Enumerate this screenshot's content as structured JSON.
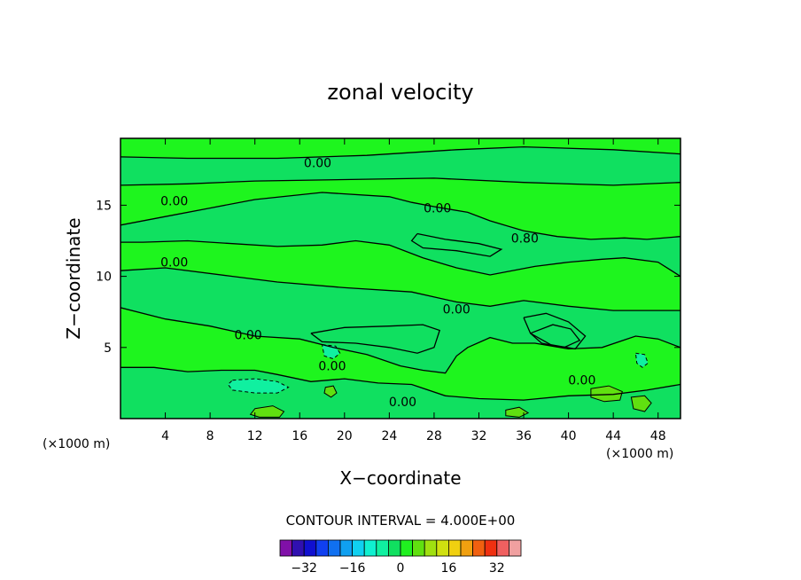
{
  "chart_data": {
    "type": "heatmap",
    "title": "zonal velocity",
    "xlabel": "X−coordinate",
    "ylabel": "Z−coordinate",
    "x_unit_label": "(×1000 m)",
    "y_unit_label": "(×1000 m)",
    "xlim": [
      0,
      50
    ],
    "ylim": [
      0,
      19.7
    ],
    "x_ticks": [
      4,
      8,
      12,
      16,
      20,
      24,
      28,
      32,
      36,
      40,
      44,
      48
    ],
    "y_ticks": [
      5,
      10,
      15
    ],
    "contour_interval_text": "CONTOUR INTERVAL = 4.000E+00",
    "contour_interval": 4,
    "contour_labels": [
      {
        "text": "0.00",
        "x": 17.6,
        "z": 18.0
      },
      {
        "text": "0.00",
        "x": 4.8,
        "z": 15.3
      },
      {
        "text": "0.00",
        "x": 28.3,
        "z": 14.8
      },
      {
        "text": "0.80",
        "x": 36.1,
        "z": 12.7
      },
      {
        "text": "0.00",
        "x": 4.8,
        "z": 11.0
      },
      {
        "text": "0.00",
        "x": 30.0,
        "z": 7.7
      },
      {
        "text": "0.00",
        "x": 11.4,
        "z": 5.9
      },
      {
        "text": "0.00",
        "x": 18.9,
        "z": 3.7
      },
      {
        "text": "0.00",
        "x": 41.2,
        "z": 2.7
      },
      {
        "text": "0.00",
        "x": 25.2,
        "z": 1.2
      }
    ],
    "colorbar": {
      "ticks": [
        -32,
        -16,
        0,
        16,
        32
      ],
      "tick_labels": [
        "−32",
        "−16",
        "0",
        "16",
        "32"
      ],
      "levels": [
        -36,
        -32,
        -28,
        -24,
        -20,
        -16,
        -12,
        -8,
        -4,
        0,
        4,
        8,
        12,
        16,
        20,
        24,
        28,
        32,
        36
      ],
      "colors": [
        "#8010a8",
        "#3010b0",
        "#1010d0",
        "#1040f0",
        "#1070f0",
        "#10a0f0",
        "#10d0f0",
        "#10f0d0",
        "#10f0a0",
        "#10e060",
        "#20f020",
        "#60e010",
        "#a0e010",
        "#d0e010",
        "#f0d010",
        "#f0a010",
        "#f06010",
        "#f03010",
        "#f06060",
        "#f0a0a0"
      ]
    },
    "background_value_color": "#1ef51e",
    "regions": [
      {
        "level": -4,
        "color": "#10e060",
        "polygon": [
          [
            0,
            18.4
          ],
          [
            6,
            18.3
          ],
          [
            14,
            18.3
          ],
          [
            22,
            18.5
          ],
          [
            30,
            18.9
          ],
          [
            36,
            19.1
          ],
          [
            44,
            18.9
          ],
          [
            50,
            18.6
          ],
          [
            50,
            16.6
          ],
          [
            44,
            16.4
          ],
          [
            36,
            16.6
          ],
          [
            28,
            16.9
          ],
          [
            20,
            16.8
          ],
          [
            12,
            16.7
          ],
          [
            6,
            16.5
          ],
          [
            0,
            16.4
          ]
        ]
      },
      {
        "level": -4,
        "color": "#10e060",
        "polygon": [
          [
            0,
            13.6
          ],
          [
            4,
            14.2
          ],
          [
            8,
            14.8
          ],
          [
            12,
            15.4
          ],
          [
            18,
            15.9
          ],
          [
            24,
            15.6
          ],
          [
            26,
            15.2
          ],
          [
            28,
            14.9
          ],
          [
            31,
            14.5
          ],
          [
            33,
            13.9
          ],
          [
            36,
            13.2
          ],
          [
            39,
            12.8
          ],
          [
            42,
            12.6
          ],
          [
            45,
            12.7
          ],
          [
            47,
            12.6
          ],
          [
            50,
            12.8
          ],
          [
            50,
            10
          ],
          [
            48,
            11.0
          ],
          [
            45,
            11.3
          ],
          [
            43,
            11.2
          ],
          [
            40,
            11.0
          ],
          [
            37,
            10.7
          ],
          [
            33,
            10.1
          ],
          [
            30,
            10.6
          ],
          [
            27,
            11.3
          ],
          [
            24,
            12.2
          ],
          [
            21,
            12.5
          ],
          [
            18,
            12.2
          ],
          [
            14,
            12.1
          ],
          [
            10,
            12.3
          ],
          [
            6,
            12.5
          ],
          [
            2,
            12.4
          ],
          [
            0,
            12.4
          ]
        ]
      },
      {
        "level": -4,
        "color": "#10e060",
        "polygon": [
          [
            0,
            10.4
          ],
          [
            4,
            10.6
          ],
          [
            10,
            10.0
          ],
          [
            14,
            9.6
          ],
          [
            20,
            9.2
          ],
          [
            26,
            8.9
          ],
          [
            30,
            8.2
          ],
          [
            33,
            7.9
          ],
          [
            36,
            8.3
          ],
          [
            40,
            7.9
          ],
          [
            44,
            7.6
          ],
          [
            48,
            7.6
          ],
          [
            50,
            7.6
          ],
          [
            50,
            5
          ],
          [
            48,
            5.6
          ],
          [
            46,
            5.8
          ],
          [
            43,
            5.0
          ],
          [
            40,
            4.9
          ],
          [
            37,
            5.3
          ],
          [
            35,
            5.3
          ],
          [
            33,
            5.7
          ],
          [
            31,
            5.0
          ],
          [
            30,
            4.4
          ],
          [
            29,
            3.2
          ],
          [
            27,
            3.4
          ],
          [
            25,
            3.7
          ],
          [
            22,
            4.5
          ],
          [
            19,
            5.0
          ],
          [
            16,
            5.6
          ],
          [
            12,
            5.8
          ],
          [
            8,
            6.5
          ],
          [
            4,
            7.0
          ],
          [
            0,
            7.8
          ]
        ]
      },
      {
        "level": -4,
        "color": "#10e060",
        "polygon": [
          [
            0,
            3.6
          ],
          [
            3,
            3.6
          ],
          [
            6,
            3.3
          ],
          [
            9,
            3.4
          ],
          [
            12,
            3.4
          ],
          [
            14,
            3.1
          ],
          [
            17,
            2.6
          ],
          [
            20,
            2.8
          ],
          [
            23,
            2.5
          ],
          [
            26,
            2.4
          ],
          [
            29,
            1.6
          ],
          [
            32,
            1.4
          ],
          [
            36,
            1.3
          ],
          [
            40,
            1.6
          ],
          [
            44,
            1.7
          ],
          [
            47,
            2.0
          ],
          [
            50,
            2.4
          ],
          [
            50,
            0
          ],
          [
            0,
            0
          ]
        ]
      },
      {
        "level": -8,
        "color": "#10f0a0",
        "polygon": [
          [
            10,
            2.7
          ],
          [
            12,
            2.8
          ],
          [
            14,
            2.6
          ],
          [
            15,
            2.2
          ],
          [
            14,
            1.8
          ],
          [
            12,
            1.8
          ],
          [
            10,
            2.0
          ],
          [
            9.6,
            2.4
          ]
        ]
      },
      {
        "level": -8,
        "color": "#10f0a0",
        "polygon": [
          [
            18,
            5.2
          ],
          [
            19.2,
            5.1
          ],
          [
            19.6,
            4.6
          ],
          [
            19.0,
            4.2
          ],
          [
            18.2,
            4.4
          ]
        ]
      },
      {
        "level": -8,
        "color": "#10f0a0",
        "polygon": [
          [
            46,
            4.6
          ],
          [
            46.8,
            4.5
          ],
          [
            47.1,
            3.9
          ],
          [
            46.6,
            3.6
          ],
          [
            46.1,
            3.9
          ]
        ]
      },
      {
        "level": 4,
        "color": "#60e010",
        "polygon": [
          [
            42,
            2.1
          ],
          [
            43.6,
            2.3
          ],
          [
            44.8,
            1.9
          ],
          [
            44.6,
            1.3
          ],
          [
            43.2,
            1.2
          ],
          [
            42.0,
            1.5
          ]
        ]
      },
      {
        "level": 4,
        "color": "#60e010",
        "polygon": [
          [
            45.6,
            1.5
          ],
          [
            46.8,
            1.6
          ],
          [
            47.4,
            1.1
          ],
          [
            46.8,
            0.5
          ],
          [
            45.8,
            0.7
          ]
        ]
      },
      {
        "level": 4,
        "color": "#60e010",
        "polygon": [
          [
            12,
            0.7
          ],
          [
            13.6,
            0.9
          ],
          [
            14.6,
            0.5
          ],
          [
            14.2,
            0.1
          ],
          [
            12.4,
            0.1
          ],
          [
            11.6,
            0.3
          ]
        ]
      },
      {
        "level": 4,
        "color": "#60e010",
        "polygon": [
          [
            34.4,
            0.6
          ],
          [
            35.6,
            0.8
          ],
          [
            36.4,
            0.4
          ],
          [
            35.6,
            0.1
          ],
          [
            34.4,
            0.2
          ]
        ]
      },
      {
        "level": 4,
        "color": "#60e010",
        "polygon": [
          [
            18.3,
            2.2
          ],
          [
            19.0,
            2.3
          ],
          [
            19.3,
            1.8
          ],
          [
            18.8,
            1.5
          ],
          [
            18.2,
            1.8
          ]
        ]
      }
    ],
    "contours": [
      [
        [
          0,
          18.4
        ],
        [
          6,
          18.3
        ],
        [
          14,
          18.3
        ],
        [
          22,
          18.5
        ],
        [
          30,
          18.9
        ],
        [
          36,
          19.1
        ],
        [
          44,
          18.9
        ],
        [
          50,
          18.6
        ]
      ],
      [
        [
          0,
          16.4
        ],
        [
          6,
          16.5
        ],
        [
          12,
          16.7
        ],
        [
          20,
          16.8
        ],
        [
          28,
          16.9
        ],
        [
          36,
          16.6
        ],
        [
          44,
          16.4
        ],
        [
          50,
          16.6
        ]
      ],
      [
        [
          0,
          13.6
        ],
        [
          4,
          14.2
        ],
        [
          8,
          14.8
        ],
        [
          12,
          15.4
        ],
        [
          18,
          15.9
        ],
        [
          24,
          15.6
        ],
        [
          26,
          15.2
        ],
        [
          28,
          14.9
        ],
        [
          31,
          14.5
        ],
        [
          33,
          13.9
        ],
        [
          36,
          13.2
        ],
        [
          39,
          12.8
        ],
        [
          42,
          12.6
        ],
        [
          45,
          12.7
        ],
        [
          47,
          12.6
        ],
        [
          50,
          12.8
        ]
      ],
      [
        [
          0,
          12.4
        ],
        [
          2,
          12.4
        ],
        [
          6,
          12.5
        ],
        [
          10,
          12.3
        ],
        [
          14,
          12.1
        ],
        [
          18,
          12.2
        ],
        [
          21,
          12.5
        ],
        [
          24,
          12.2
        ],
        [
          27,
          11.3
        ],
        [
          30,
          10.6
        ],
        [
          33,
          10.1
        ],
        [
          37,
          10.7
        ],
        [
          40,
          11.0
        ],
        [
          43,
          11.2
        ],
        [
          45,
          11.3
        ],
        [
          48,
          11.0
        ],
        [
          50,
          10
        ]
      ],
      [
        [
          0,
          10.4
        ],
        [
          4,
          10.6
        ],
        [
          10,
          10.0
        ],
        [
          14,
          9.6
        ],
        [
          20,
          9.2
        ],
        [
          26,
          8.9
        ],
        [
          30,
          8.2
        ],
        [
          33,
          7.9
        ],
        [
          36,
          8.3
        ],
        [
          40,
          7.9
        ],
        [
          44,
          7.6
        ],
        [
          48,
          7.6
        ],
        [
          50,
          7.6
        ]
      ],
      [
        [
          0,
          7.8
        ],
        [
          4,
          7.0
        ],
        [
          8,
          6.5
        ],
        [
          12,
          5.8
        ],
        [
          16,
          5.6
        ],
        [
          19,
          5.0
        ],
        [
          22,
          4.5
        ],
        [
          25,
          3.7
        ],
        [
          27,
          3.4
        ],
        [
          29,
          3.2
        ],
        [
          30,
          4.4
        ],
        [
          31,
          5.0
        ],
        [
          33,
          5.7
        ],
        [
          35,
          5.3
        ],
        [
          37,
          5.3
        ],
        [
          40,
          4.9
        ],
        [
          43,
          5.0
        ],
        [
          46,
          5.8
        ],
        [
          48,
          5.6
        ],
        [
          50,
          5
        ]
      ],
      [
        [
          0,
          3.6
        ],
        [
          3,
          3.6
        ],
        [
          6,
          3.3
        ],
        [
          9,
          3.4
        ],
        [
          12,
          3.4
        ],
        [
          14,
          3.1
        ],
        [
          17,
          2.6
        ],
        [
          20,
          2.8
        ],
        [
          23,
          2.5
        ],
        [
          26,
          2.4
        ],
        [
          29,
          1.6
        ],
        [
          32,
          1.4
        ],
        [
          36,
          1.3
        ],
        [
          40,
          1.6
        ],
        [
          44,
          1.7
        ],
        [
          47,
          2.0
        ],
        [
          50,
          2.4
        ]
      ],
      [
        [
          36,
          7.1
        ],
        [
          38,
          7.4
        ],
        [
          40,
          6.8
        ],
        [
          41.5,
          5.8
        ],
        [
          40.6,
          4.9
        ],
        [
          38.4,
          5.2
        ],
        [
          36.6,
          6.0
        ],
        [
          36,
          7.1
        ]
      ],
      [
        [
          26.5,
          13.0
        ],
        [
          29,
          12.6
        ],
        [
          32,
          12.3
        ],
        [
          34,
          11.9
        ],
        [
          33,
          11.4
        ],
        [
          30,
          11.8
        ],
        [
          27,
          12.0
        ],
        [
          26,
          12.5
        ],
        [
          26.5,
          13.0
        ]
      ],
      [
        [
          17,
          6.0
        ],
        [
          20,
          6.4
        ],
        [
          24,
          6.5
        ],
        [
          27,
          6.6
        ],
        [
          28.5,
          6.2
        ],
        [
          28,
          5.0
        ],
        [
          26.5,
          4.6
        ],
        [
          24,
          5.0
        ],
        [
          21,
          5.3
        ],
        [
          18,
          5.4
        ],
        [
          17,
          6.0
        ]
      ],
      [
        [
          36.6,
          6.0
        ],
        [
          38.6,
          6.6
        ],
        [
          40.2,
          6.3
        ],
        [
          41.0,
          5.5
        ],
        [
          39.6,
          5.0
        ],
        [
          37.6,
          5.3
        ],
        [
          36.6,
          6.0
        ]
      ]
    ]
  }
}
